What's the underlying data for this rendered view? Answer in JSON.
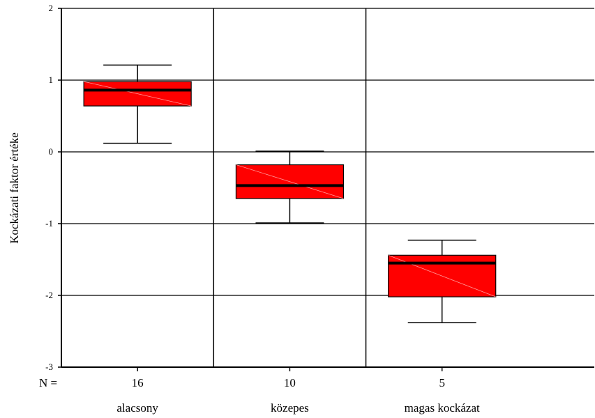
{
  "chart_data": {
    "type": "box",
    "title": "",
    "xlabel": "",
    "ylabel": "Kockázati faktor értéke",
    "ylim": [
      -3,
      2
    ],
    "yticks": [
      "2",
      "1",
      "0",
      "-1",
      "-2",
      "-3"
    ],
    "n_label": "N =",
    "grid": true,
    "box_color": "#ff0000",
    "categories": [
      {
        "label": "alacsony",
        "n": "16",
        "whisker_low": 0.12,
        "q1": 0.64,
        "median": 0.86,
        "q3": 0.98,
        "whisker_high": 1.21
      },
      {
        "label": "közepes",
        "n": "10",
        "whisker_low": -0.99,
        "q1": -0.65,
        "median": -0.47,
        "q3": -0.18,
        "whisker_high": 0.01
      },
      {
        "label": "magas kockázat",
        "n": "5",
        "whisker_low": -2.38,
        "q1": -2.02,
        "median": -1.55,
        "q3": -1.44,
        "whisker_high": -1.23
      }
    ]
  }
}
